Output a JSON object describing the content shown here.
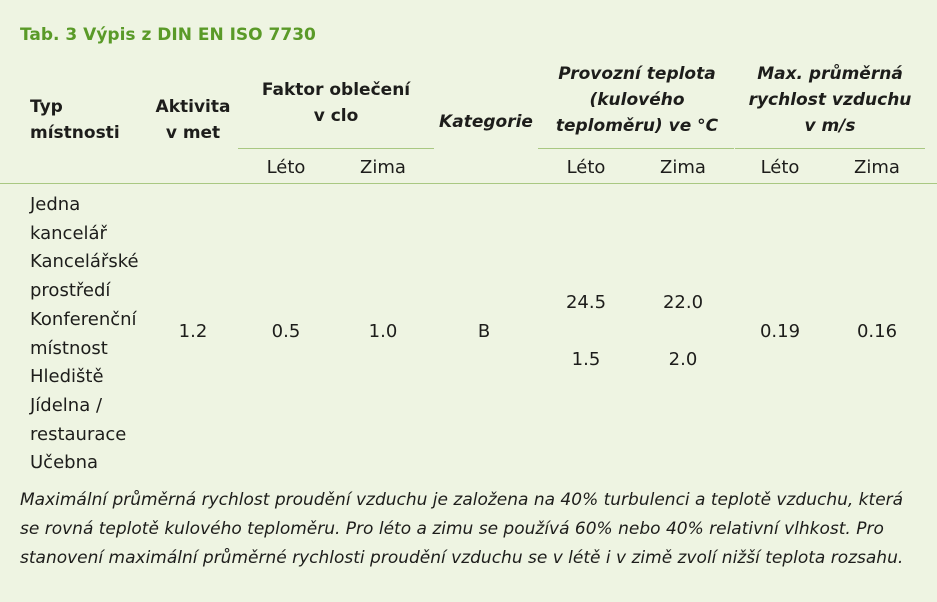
{
  "title": "Tab. 3 Výpis z DIN EN ISO 7730",
  "headers": {
    "typ": [
      "Typ",
      "místnosti"
    ],
    "aktivita": [
      "Aktivita",
      "v met"
    ],
    "faktor": [
      "Faktor oblečení",
      "v clo"
    ],
    "kategorie": "Kategorie",
    "teplota": [
      "Provozní teplota",
      "(kulového",
      "teploměru) ve °C"
    ],
    "rychlost": [
      "Max. průměrná",
      "rychlost vzduchu",
      "v m/s"
    ]
  },
  "subheaders": {
    "faktor_leto": "Léto",
    "faktor_zima": "Zima",
    "teplota_leto": "Léto",
    "teplota_zima": "Zima",
    "rychlost_leto": "Léto",
    "rychlost_zima": "Zima"
  },
  "row": {
    "types": [
      "Jedna",
      "kancelář",
      "Kancelářské",
      "prostředí",
      "Konferenční",
      "místnost",
      "Hlediště",
      "Jídelna /",
      "restaurace",
      "Učebna"
    ],
    "aktivita": "1.2",
    "faktor_leto": "0.5",
    "faktor_zima": "1.0",
    "kategorie": "B",
    "teplota_leto": [
      "24.5",
      "1.5"
    ],
    "teplota_zima": [
      "22.0",
      "2.0"
    ],
    "rychlost_leto": "0.19",
    "rychlost_zima": "0.16"
  },
  "note": "Maximální průměrná rychlost proudění vzduchu je založena na 40% turbulenci a teplotě vzduchu, která se rovná teplotě kulového teploměru. Pro léto a zimu se používá 60% nebo 40% relativní vlhkost. Pro stanovení maximální průměrné rychlosti proudění vzduchu se v létě i v zimě zvolí nižší teplota rozsahu."
}
